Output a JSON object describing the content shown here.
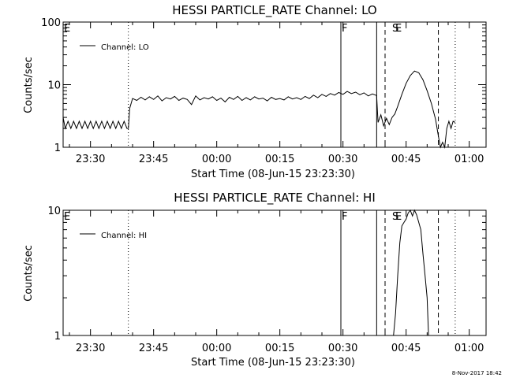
{
  "footer_timestamp": "8-Nov-2017 18:42",
  "chart_data": [
    {
      "type": "line",
      "title": "HESSI PARTICLE_RATE Channel: LO",
      "xlabel": "Start Time (08-Jun-15 23:23:30)",
      "ylabel": "Counts/sec",
      "yscale": "log",
      "ylim": [
        1,
        100
      ],
      "y_ticks": [
        "1",
        "10",
        "100"
      ],
      "xlim": [
        "23:23:30",
        "01:04:00"
      ],
      "x_ticks": [
        "23:30",
        "23:45",
        "00:00",
        "00:15",
        "00:30",
        "00:45",
        "01:00"
      ],
      "grid": false,
      "legend": {
        "position": "top-left",
        "entries": [
          "Channel: LO"
        ]
      },
      "flags": [
        {
          "label": "E",
          "time": "23:23:30"
        },
        {
          "label": "F",
          "time": "00:29:30"
        },
        {
          "label": "S",
          "time": "00:41:30"
        },
        {
          "label": "E",
          "time": "00:42:15"
        }
      ],
      "markers": [
        {
          "time": "23:39:00",
          "style": "dotted"
        },
        {
          "time": "00:29:30",
          "style": "solid"
        },
        {
          "time": "00:38:00",
          "style": "solid"
        },
        {
          "time": "00:40:00",
          "style": "dashed"
        },
        {
          "time": "00:52:40",
          "style": "dashed"
        },
        {
          "time": "00:56:40",
          "style": "dotted"
        }
      ],
      "series": [
        {
          "name": "Channel: LO",
          "points": [
            [
              "23:23:30",
              3.0
            ],
            [
              "23:24:00",
              2.0
            ],
            [
              "23:24:40",
              2.6
            ],
            [
              "23:25:20",
              2.0
            ],
            [
              "23:26:00",
              2.6
            ],
            [
              "23:26:40",
              2.0
            ],
            [
              "23:27:20",
              2.6
            ],
            [
              "23:28:00",
              2.0
            ],
            [
              "23:28:40",
              2.6
            ],
            [
              "23:29:20",
              2.0
            ],
            [
              "23:30:00",
              2.6
            ],
            [
              "23:30:40",
              2.0
            ],
            [
              "23:31:20",
              2.6
            ],
            [
              "23:32:00",
              2.0
            ],
            [
              "23:32:40",
              2.6
            ],
            [
              "23:33:20",
              2.0
            ],
            [
              "23:34:00",
              2.6
            ],
            [
              "23:34:40",
              2.0
            ],
            [
              "23:35:20",
              2.6
            ],
            [
              "23:36:00",
              2.0
            ],
            [
              "23:36:40",
              2.6
            ],
            [
              "23:37:20",
              2.0
            ],
            [
              "23:38:00",
              2.6
            ],
            [
              "23:38:40",
              2.0
            ],
            [
              "23:39:00",
              2.0
            ],
            [
              "23:39:20",
              4.2
            ],
            [
              "23:40:00",
              6.0
            ],
            [
              "23:41:00",
              5.6
            ],
            [
              "23:42:00",
              6.3
            ],
            [
              "23:43:00",
              5.7
            ],
            [
              "23:44:00",
              6.4
            ],
            [
              "23:45:00",
              5.8
            ],
            [
              "23:46:00",
              6.6
            ],
            [
              "23:47:00",
              5.5
            ],
            [
              "23:48:00",
              6.2
            ],
            [
              "23:49:00",
              5.9
            ],
            [
              "23:50:00",
              6.5
            ],
            [
              "23:51:00",
              5.6
            ],
            [
              "23:52:00",
              6.1
            ],
            [
              "23:53:00",
              5.8
            ],
            [
              "23:54:00",
              4.8
            ],
            [
              "23:55:00",
              6.6
            ],
            [
              "23:56:00",
              5.7
            ],
            [
              "23:57:00",
              6.2
            ],
            [
              "23:58:00",
              5.9
            ],
            [
              "23:59:00",
              6.4
            ],
            [
              "00:00:00",
              5.6
            ],
            [
              "00:01:00",
              6.1
            ],
            [
              "00:02:00",
              5.3
            ],
            [
              "00:03:00",
              6.3
            ],
            [
              "00:04:00",
              5.8
            ],
            [
              "00:05:00",
              6.5
            ],
            [
              "00:06:00",
              5.6
            ],
            [
              "00:07:00",
              6.2
            ],
            [
              "00:08:00",
              5.7
            ],
            [
              "00:09:00",
              6.4
            ],
            [
              "00:10:00",
              5.9
            ],
            [
              "00:11:00",
              6.1
            ],
            [
              "00:12:00",
              5.5
            ],
            [
              "00:13:00",
              6.3
            ],
            [
              "00:14:00",
              5.8
            ],
            [
              "00:15:00",
              6.0
            ],
            [
              "00:16:00",
              5.7
            ],
            [
              "00:17:00",
              6.4
            ],
            [
              "00:18:00",
              5.9
            ],
            [
              "00:19:00",
              6.2
            ],
            [
              "00:20:00",
              5.8
            ],
            [
              "00:21:00",
              6.5
            ],
            [
              "00:22:00",
              6.0
            ],
            [
              "00:23:00",
              6.8
            ],
            [
              "00:24:00",
              6.2
            ],
            [
              "00:25:00",
              7.0
            ],
            [
              "00:26:00",
              6.5
            ],
            [
              "00:27:00",
              7.2
            ],
            [
              "00:28:00",
              6.8
            ],
            [
              "00:29:00",
              7.5
            ],
            [
              "00:30:00",
              7.0
            ],
            [
              "00:31:00",
              7.8
            ],
            [
              "00:32:00",
              7.2
            ],
            [
              "00:33:00",
              7.6
            ],
            [
              "00:34:00",
              6.9
            ],
            [
              "00:35:00",
              7.4
            ],
            [
              "00:36:00",
              6.6
            ],
            [
              "00:37:00",
              7.1
            ],
            [
              "00:38:00",
              6.7
            ],
            [
              "00:38:20",
              2.5
            ],
            [
              "00:39:00",
              3.3
            ],
            [
              "00:39:40",
              2.2
            ],
            [
              "00:40:20",
              2.9
            ],
            [
              "00:41:00",
              2.3
            ],
            [
              "00:41:40",
              3.0
            ],
            [
              "00:42:20",
              3.4
            ],
            [
              "00:43:00",
              4.5
            ],
            [
              "00:44:00",
              7.0
            ],
            [
              "00:45:00",
              10.5
            ],
            [
              "00:46:00",
              14.0
            ],
            [
              "00:47:00",
              16.5
            ],
            [
              "00:48:00",
              15.5
            ],
            [
              "00:49:00",
              12.0
            ],
            [
              "00:50:00",
              8.0
            ],
            [
              "00:51:00",
              5.0
            ],
            [
              "00:52:00",
              2.8
            ],
            [
              "00:52:40",
              1.5
            ],
            [
              "00:53:10",
              1.0
            ],
            [
              "00:53:40",
              1.2
            ],
            [
              "00:54:10",
              1.0
            ],
            [
              "00:54:40",
              2.0
            ],
            [
              "00:55:10",
              2.6
            ],
            [
              "00:55:40",
              2.0
            ],
            [
              "00:56:10",
              2.6
            ],
            [
              "00:56:40",
              2.5
            ]
          ]
        }
      ]
    },
    {
      "type": "line",
      "title": "HESSI PARTICLE_RATE Channel: HI",
      "xlabel": "Start Time (08-Jun-15 23:23:30)",
      "ylabel": "Counts/sec",
      "yscale": "log",
      "ylim": [
        1,
        10
      ],
      "y_ticks": [
        "1",
        "10"
      ],
      "xlim": [
        "23:23:30",
        "01:04:00"
      ],
      "x_ticks": [
        "23:30",
        "23:45",
        "00:00",
        "00:15",
        "00:30",
        "00:45",
        "01:00"
      ],
      "grid": false,
      "legend": {
        "position": "top-left",
        "entries": [
          "Channel: HI"
        ]
      },
      "flags": [
        {
          "label": "E",
          "time": "23:23:30"
        },
        {
          "label": "F",
          "time": "00:29:30"
        },
        {
          "label": "S",
          "time": "00:41:30"
        },
        {
          "label": "E",
          "time": "00:42:15"
        }
      ],
      "markers": [
        {
          "time": "23:39:00",
          "style": "dotted"
        },
        {
          "time": "00:29:30",
          "style": "solid"
        },
        {
          "time": "00:38:00",
          "style": "solid"
        },
        {
          "time": "00:40:00",
          "style": "dashed"
        },
        {
          "time": "00:52:40",
          "style": "dashed"
        },
        {
          "time": "00:56:40",
          "style": "dotted"
        }
      ],
      "series": [
        {
          "name": "Channel: HI",
          "points": [
            [
              "00:42:00",
              1.0
            ],
            [
              "00:42:30",
              1.5
            ],
            [
              "00:43:00",
              3.0
            ],
            [
              "00:43:30",
              5.5
            ],
            [
              "00:44:00",
              7.5
            ],
            [
              "00:44:30",
              8.0
            ],
            [
              "00:45:00",
              8.5
            ],
            [
              "00:45:30",
              9.5
            ],
            [
              "00:46:00",
              10.0
            ],
            [
              "00:46:30",
              9.0
            ],
            [
              "00:47:00",
              10.0
            ],
            [
              "00:47:30",
              9.2
            ],
            [
              "00:48:00",
              8.0
            ],
            [
              "00:48:30",
              7.0
            ],
            [
              "00:49:00",
              4.5
            ],
            [
              "00:49:30",
              3.0
            ],
            [
              "00:50:00",
              2.0
            ],
            [
              "00:50:20",
              1.0
            ]
          ]
        }
      ]
    }
  ]
}
